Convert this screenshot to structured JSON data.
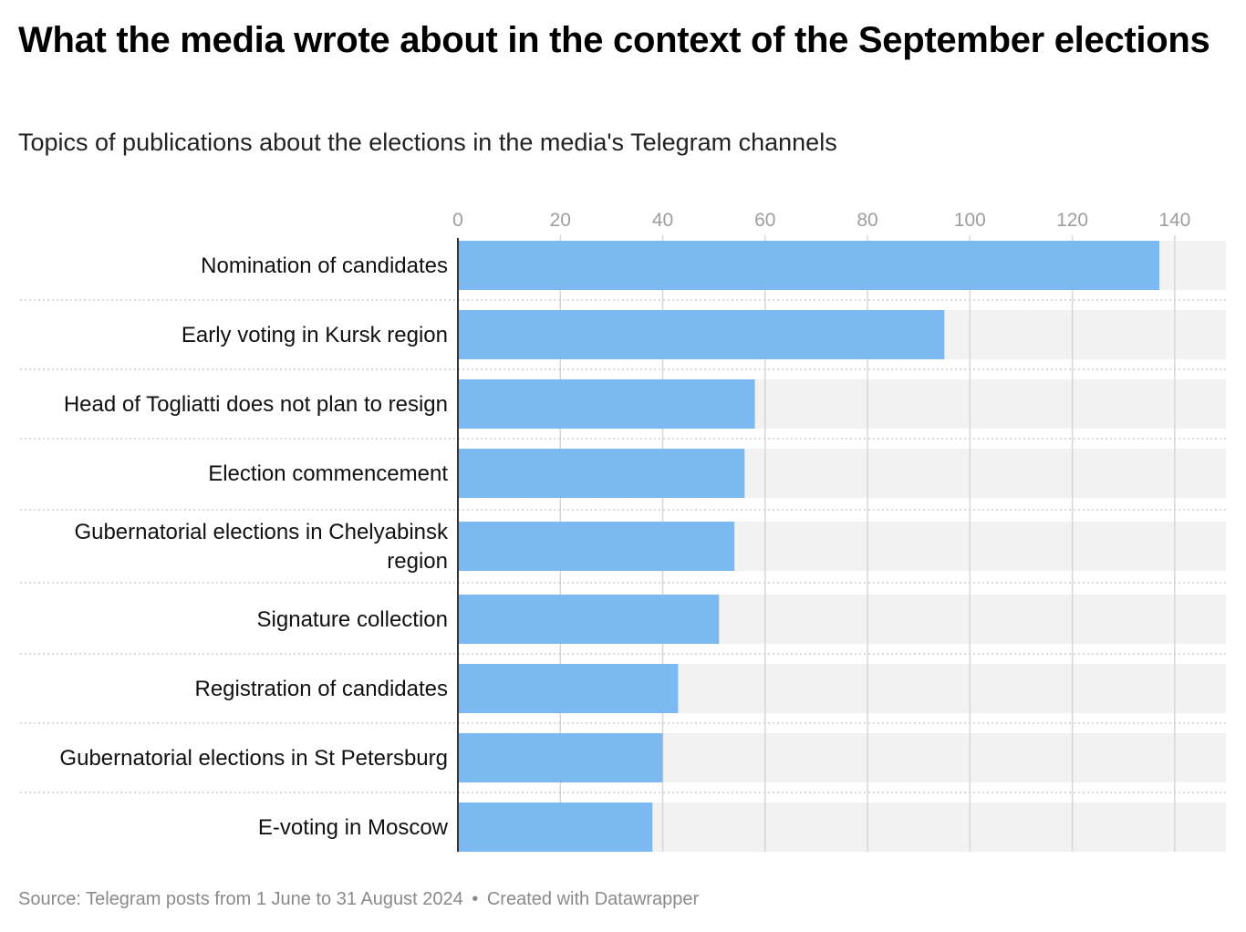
{
  "header": {
    "title": "What the media wrote about in the context of the September elections",
    "subtitle": "Topics of publications about the elections in the media's Telegram channels"
  },
  "footer": {
    "source": "Source: Telegram posts from 1 June to 31 August 2024",
    "separator": "•",
    "credit": "Created with Datawrapper"
  },
  "colors": {
    "bar": "#7cb9f0",
    "track": "#f2f2f2",
    "grid": "#d6d6d6",
    "axis": "#333333",
    "tick_label": "#9e9e9e",
    "row_separator": "#cfcfcf"
  },
  "chart_data": {
    "type": "bar",
    "orientation": "horizontal",
    "categories": [
      "Nomination of candidates",
      "Early voting in Kursk region",
      "Head of Togliatti does not plan to resign",
      "Election commencement",
      "Gubernatorial elections in Chelyabinsk region",
      "Signature collection",
      "Registration of candidates",
      "Gubernatorial elections in St Petersburg",
      "E-voting in Moscow"
    ],
    "values": [
      137,
      95,
      58,
      56,
      54,
      51,
      43,
      40,
      38
    ],
    "xlim": [
      0,
      150
    ],
    "x_ticks": [
      0,
      20,
      40,
      60,
      80,
      100,
      120,
      140
    ],
    "x_tick_labels": [
      "0",
      "20",
      "40",
      "60",
      "80",
      "100",
      "120",
      "140"
    ],
    "x_axis_position": "top",
    "grid": true,
    "background_track": true,
    "legend": "none",
    "title": "What the media wrote about in the context of the September elections",
    "subtitle": "Topics of publications about the elections in the media's Telegram channels",
    "xlabel": "",
    "ylabel": ""
  }
}
